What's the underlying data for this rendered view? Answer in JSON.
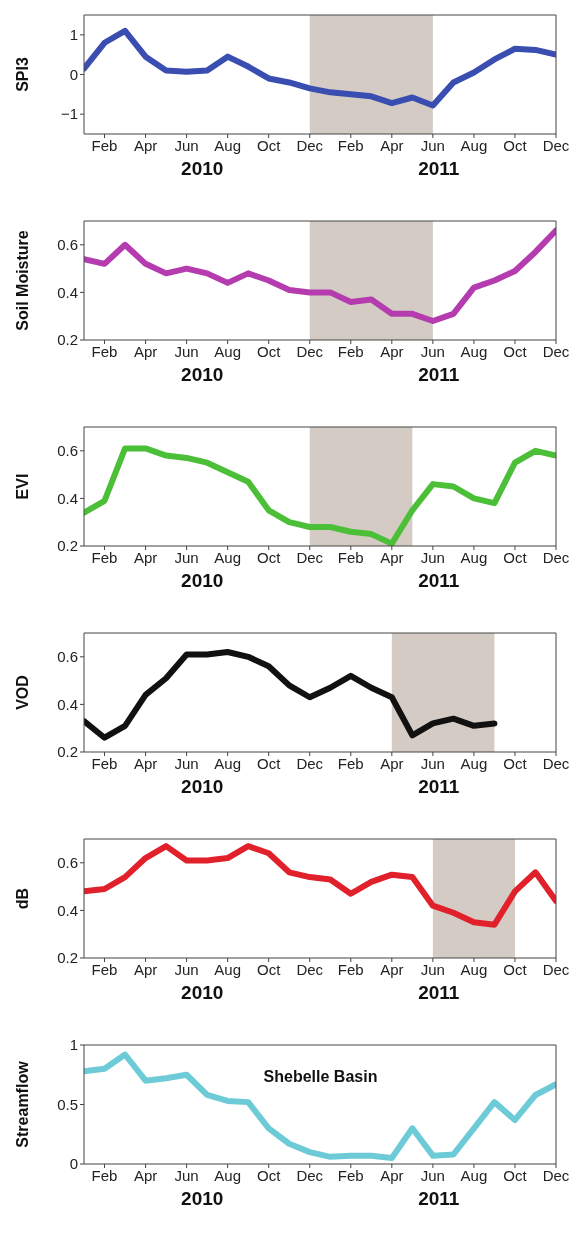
{
  "chart_data": [
    {
      "type": "line",
      "ylabel": "SPI3",
      "annotations": [
        "2010",
        "2011"
      ],
      "x": [
        "2010-01",
        "2010-02",
        "2010-03",
        "2010-04",
        "2010-05",
        "2010-06",
        "2010-07",
        "2010-08",
        "2010-09",
        "2010-10",
        "2010-11",
        "2010-12",
        "2011-01",
        "2011-02",
        "2011-03",
        "2011-04",
        "2011-05",
        "2011-06",
        "2011-07",
        "2011-08",
        "2011-09",
        "2011-10",
        "2011-11",
        "2011-12"
      ],
      "xlim": [
        "2010-01",
        "2011-12"
      ],
      "xticks": [
        {
          "value": "2010-02",
          "label": "Feb"
        },
        {
          "value": "2010-04",
          "label": "Apr"
        },
        {
          "value": "2010-06",
          "label": "Jun"
        },
        {
          "value": "2010-08",
          "label": "Aug"
        },
        {
          "value": "2010-10",
          "label": "Oct"
        },
        {
          "value": "2010-12",
          "label": "Dec"
        },
        {
          "value": "2011-02",
          "label": "Feb"
        },
        {
          "value": "2011-04",
          "label": "Apr"
        },
        {
          "value": "2011-06",
          "label": "Jun"
        },
        {
          "value": "2011-08",
          "label": "Aug"
        },
        {
          "value": "2011-10",
          "label": "Oct"
        },
        {
          "value": "2011-12",
          "label": "Dec"
        }
      ],
      "ylim": [
        -1.5,
        1.5
      ],
      "yticks": [
        {
          "value": -1,
          "label": "−1"
        },
        0,
        1
      ],
      "bands": [
        {
          "axis": "x",
          "from": "2010-12",
          "to": "2011-06",
          "color": "#d4ccc4"
        }
      ],
      "series": [
        {
          "color": "#3a4db0",
          "values": [
            0.15,
            0.8,
            1.1,
            0.45,
            0.1,
            0.07,
            0.1,
            0.45,
            0.2,
            -0.1,
            -0.2,
            -0.35,
            -0.45,
            -0.5,
            -0.55,
            -0.72,
            -0.58,
            -0.78,
            -0.2,
            0.05,
            0.38,
            0.65,
            0.62,
            0.5
          ]
        }
      ]
    },
    {
      "type": "line",
      "ylabel": "Soil Moisture",
      "annotations": [
        "2010",
        "2011"
      ],
      "x": [
        "2010-01",
        "2010-02",
        "2010-03",
        "2010-04",
        "2010-05",
        "2010-06",
        "2010-07",
        "2010-08",
        "2010-09",
        "2010-10",
        "2010-11",
        "2010-12",
        "2011-01",
        "2011-02",
        "2011-03",
        "2011-04",
        "2011-05",
        "2011-06",
        "2011-07",
        "2011-08",
        "2011-09",
        "2011-10",
        "2011-11",
        "2011-12"
      ],
      "xlim": [
        "2010-01",
        "2011-12"
      ],
      "xticks": [
        {
          "value": "2010-02",
          "label": "Feb"
        },
        {
          "value": "2010-04",
          "label": "Apr"
        },
        {
          "value": "2010-06",
          "label": "Jun"
        },
        {
          "value": "2010-08",
          "label": "Aug"
        },
        {
          "value": "2010-10",
          "label": "Oct"
        },
        {
          "value": "2010-12",
          "label": "Dec"
        },
        {
          "value": "2011-02",
          "label": "Feb"
        },
        {
          "value": "2011-04",
          "label": "Apr"
        },
        {
          "value": "2011-06",
          "label": "Jun"
        },
        {
          "value": "2011-08",
          "label": "Aug"
        },
        {
          "value": "2011-10",
          "label": "Oct"
        },
        {
          "value": "2011-12",
          "label": "Dec"
        }
      ],
      "ylim": [
        0.2,
        0.7
      ],
      "yticks": [
        0.2,
        0.4,
        0.6
      ],
      "bands": [
        {
          "axis": "x",
          "from": "2010-12",
          "to": "2011-06",
          "color": "#d4ccc4"
        }
      ],
      "series": [
        {
          "color": "#b53cae",
          "values": [
            0.54,
            0.52,
            0.6,
            0.52,
            0.48,
            0.5,
            0.48,
            0.44,
            0.48,
            0.45,
            0.41,
            0.4,
            0.4,
            0.36,
            0.37,
            0.31,
            0.31,
            0.28,
            0.31,
            0.42,
            0.45,
            0.49,
            0.57,
            0.66
          ]
        }
      ]
    },
    {
      "type": "line",
      "ylabel": "EVI",
      "annotations": [
        "2010",
        "2011"
      ],
      "x": [
        "2010-01",
        "2010-02",
        "2010-03",
        "2010-04",
        "2010-05",
        "2010-06",
        "2010-07",
        "2010-08",
        "2010-09",
        "2010-10",
        "2010-11",
        "2010-12",
        "2011-01",
        "2011-02",
        "2011-03",
        "2011-04",
        "2011-05",
        "2011-06",
        "2011-07",
        "2011-08",
        "2011-09",
        "2011-10",
        "2011-11",
        "2011-12"
      ],
      "xlim": [
        "2010-01",
        "2011-12"
      ],
      "xticks": [
        {
          "value": "2010-02",
          "label": "Feb"
        },
        {
          "value": "2010-04",
          "label": "Apr"
        },
        {
          "value": "2010-06",
          "label": "Jun"
        },
        {
          "value": "2010-08",
          "label": "Aug"
        },
        {
          "value": "2010-10",
          "label": "Oct"
        },
        {
          "value": "2010-12",
          "label": "Dec"
        },
        {
          "value": "2011-02",
          "label": "Feb"
        },
        {
          "value": "2011-04",
          "label": "Apr"
        },
        {
          "value": "2011-06",
          "label": "Jun"
        },
        {
          "value": "2011-08",
          "label": "Aug"
        },
        {
          "value": "2011-10",
          "label": "Oct"
        },
        {
          "value": "2011-12",
          "label": "Dec"
        }
      ],
      "ylim": [
        0.2,
        0.7
      ],
      "yticks": [
        0.2,
        0.4,
        0.6
      ],
      "bands": [
        {
          "axis": "x",
          "from": "2010-12",
          "to": "2011-05",
          "color": "#d4ccc4"
        }
      ],
      "series": [
        {
          "color": "#4cbf38",
          "values": [
            0.34,
            0.39,
            0.61,
            0.61,
            0.58,
            0.57,
            0.55,
            0.51,
            0.47,
            0.35,
            0.3,
            0.28,
            0.28,
            0.26,
            0.25,
            0.21,
            0.35,
            0.46,
            0.45,
            0.4,
            0.38,
            0.55,
            0.6,
            0.58
          ]
        }
      ]
    },
    {
      "type": "line",
      "ylabel": "VOD",
      "annotations": [
        "2010",
        "2011"
      ],
      "x": [
        "2010-01",
        "2010-02",
        "2010-03",
        "2010-04",
        "2010-05",
        "2010-06",
        "2010-07",
        "2010-08",
        "2010-09",
        "2010-10",
        "2010-11",
        "2010-12",
        "2011-01",
        "2011-02",
        "2011-03",
        "2011-04",
        "2011-05",
        "2011-06",
        "2011-07",
        "2011-08",
        "2011-09"
      ],
      "xlim": [
        "2010-01",
        "2011-12"
      ],
      "xticks": [
        {
          "value": "2010-02",
          "label": "Feb"
        },
        {
          "value": "2010-04",
          "label": "Apr"
        },
        {
          "value": "2010-06",
          "label": "Jun"
        },
        {
          "value": "2010-08",
          "label": "Aug"
        },
        {
          "value": "2010-10",
          "label": "Oct"
        },
        {
          "value": "2010-12",
          "label": "Dec"
        },
        {
          "value": "2011-02",
          "label": "Feb"
        },
        {
          "value": "2011-04",
          "label": "Apr"
        },
        {
          "value": "2011-06",
          "label": "Jun"
        },
        {
          "value": "2011-08",
          "label": "Aug"
        },
        {
          "value": "2011-10",
          "label": "Oct"
        },
        {
          "value": "2011-12",
          "label": "Dec"
        }
      ],
      "ylim": [
        0.2,
        0.7
      ],
      "yticks": [
        0.2,
        0.4,
        0.6
      ],
      "bands": [
        {
          "axis": "x",
          "from": "2011-04",
          "to": "2011-09",
          "color": "#d4ccc4"
        }
      ],
      "series": [
        {
          "color": "#111111",
          "values": [
            0.33,
            0.26,
            0.31,
            0.44,
            0.51,
            0.61,
            0.61,
            0.62,
            0.6,
            0.56,
            0.48,
            0.43,
            0.47,
            0.52,
            0.47,
            0.43,
            0.27,
            0.32,
            0.34,
            0.31,
            0.32
          ]
        }
      ]
    },
    {
      "type": "line",
      "ylabel": "dB",
      "annotations": [
        "2010",
        "2011"
      ],
      "x": [
        "2010-01",
        "2010-02",
        "2010-03",
        "2010-04",
        "2010-05",
        "2010-06",
        "2010-07",
        "2010-08",
        "2010-09",
        "2010-10",
        "2010-11",
        "2010-12",
        "2011-01",
        "2011-02",
        "2011-03",
        "2011-04",
        "2011-05",
        "2011-06",
        "2011-07",
        "2011-08",
        "2011-09",
        "2011-10",
        "2011-11",
        "2011-12"
      ],
      "xlim": [
        "2010-01",
        "2011-12"
      ],
      "xticks": [
        {
          "value": "2010-02",
          "label": "Feb"
        },
        {
          "value": "2010-04",
          "label": "Apr"
        },
        {
          "value": "2010-06",
          "label": "Jun"
        },
        {
          "value": "2010-08",
          "label": "Aug"
        },
        {
          "value": "2010-10",
          "label": "Oct"
        },
        {
          "value": "2010-12",
          "label": "Dec"
        },
        {
          "value": "2011-02",
          "label": "Feb"
        },
        {
          "value": "2011-04",
          "label": "Apr"
        },
        {
          "value": "2011-06",
          "label": "Jun"
        },
        {
          "value": "2011-08",
          "label": "Aug"
        },
        {
          "value": "2011-10",
          "label": "Oct"
        },
        {
          "value": "2011-12",
          "label": "Dec"
        }
      ],
      "ylim": [
        0.2,
        0.7
      ],
      "yticks": [
        0.2,
        0.4,
        0.6
      ],
      "bands": [
        {
          "axis": "x",
          "from": "2011-06",
          "to": "2011-10",
          "color": "#d4ccc4"
        }
      ],
      "series": [
        {
          "color": "#e0202a",
          "values": [
            0.48,
            0.49,
            0.54,
            0.62,
            0.67,
            0.61,
            0.61,
            0.62,
            0.67,
            0.64,
            0.56,
            0.54,
            0.53,
            0.47,
            0.52,
            0.55,
            0.54,
            0.42,
            0.39,
            0.35,
            0.34,
            0.48,
            0.56,
            0.44
          ]
        }
      ]
    },
    {
      "type": "line",
      "title": "Shebelle Basin",
      "ylabel": "Streamflow",
      "annotations": [
        "2010",
        "2011"
      ],
      "x": [
        "2010-01",
        "2010-02",
        "2010-03",
        "2010-04",
        "2010-05",
        "2010-06",
        "2010-07",
        "2010-08",
        "2010-09",
        "2010-10",
        "2010-11",
        "2010-12",
        "2011-01",
        "2011-02",
        "2011-03",
        "2011-04",
        "2011-05",
        "2011-06",
        "2011-07",
        "2011-08",
        "2011-09",
        "2011-10",
        "2011-11",
        "2011-12"
      ],
      "xlim": [
        "2010-01",
        "2011-12"
      ],
      "xticks": [
        {
          "value": "2010-02",
          "label": "Feb"
        },
        {
          "value": "2010-04",
          "label": "Apr"
        },
        {
          "value": "2010-06",
          "label": "Jun"
        },
        {
          "value": "2010-08",
          "label": "Aug"
        },
        {
          "value": "2010-10",
          "label": "Oct"
        },
        {
          "value": "2010-12",
          "label": "Dec"
        },
        {
          "value": "2011-02",
          "label": "Feb"
        },
        {
          "value": "2011-04",
          "label": "Apr"
        },
        {
          "value": "2011-06",
          "label": "Jun"
        },
        {
          "value": "2011-08",
          "label": "Aug"
        },
        {
          "value": "2011-10",
          "label": "Oct"
        },
        {
          "value": "2011-12",
          "label": "Dec"
        }
      ],
      "ylim": [
        0,
        1
      ],
      "yticks": [
        0,
        0.5,
        1
      ],
      "series": [
        {
          "color": "#6ccbd6",
          "values": [
            0.78,
            0.8,
            0.92,
            0.7,
            0.72,
            0.75,
            0.58,
            0.53,
            0.52,
            0.3,
            0.17,
            0.1,
            0.06,
            0.07,
            0.07,
            0.05,
            0.3,
            0.07,
            0.08,
            0.3,
            0.52,
            0.37,
            0.58,
            0.67
          ]
        }
      ]
    }
  ]
}
